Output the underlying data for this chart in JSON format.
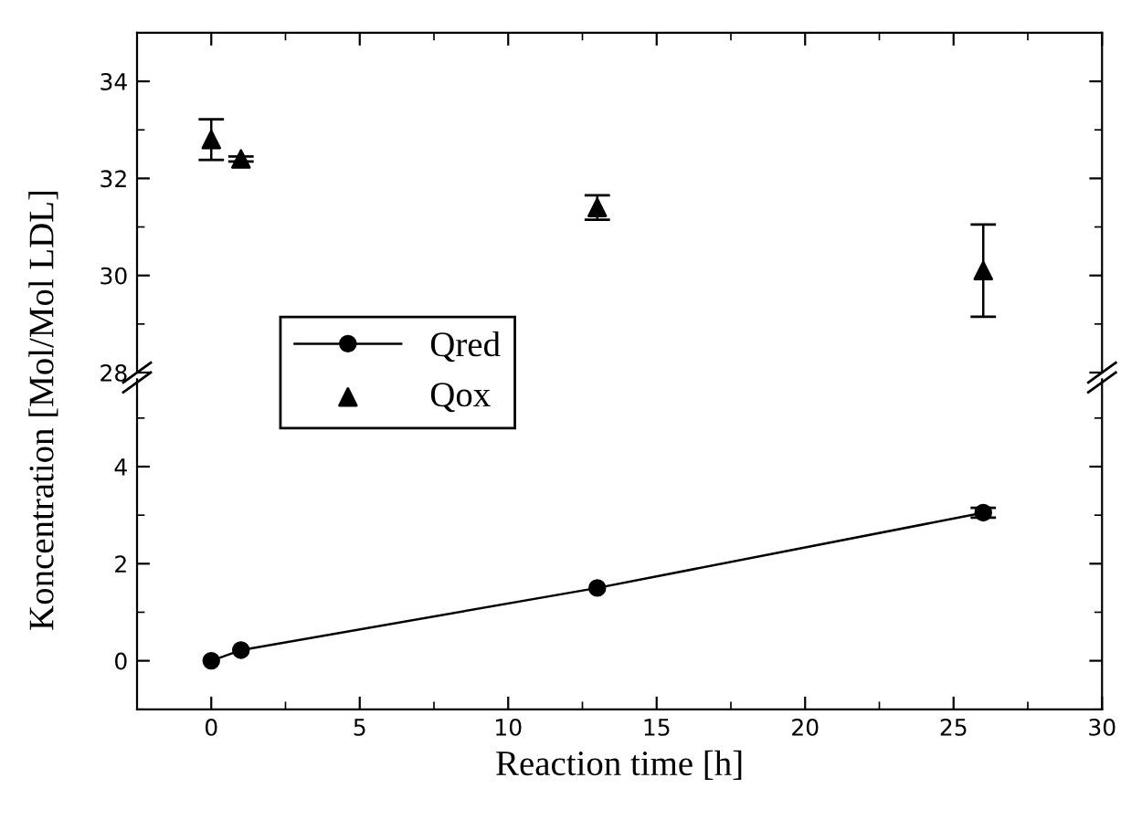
{
  "chart_data": [
    {
      "type": "scatter",
      "xlim": [
        -2.5,
        30
      ],
      "ylim": [
        28,
        35
      ],
      "yticks": [
        28,
        30,
        32,
        34
      ],
      "tick_labels": "y",
      "marker": "triangle",
      "legend": "left",
      "series": [
        {
          "name": "Qox",
          "color": "#000000",
          "x": [
            0,
            1,
            13,
            26
          ],
          "values": [
            32.8,
            32.4,
            31.4,
            30.1
          ],
          "errors": [
            0.42,
            0.05,
            0.25,
            0.95
          ]
        }
      ]
    },
    {
      "type": "line",
      "xlim": [
        -2.5,
        30
      ],
      "ylim": [
        -1,
        5.8
      ],
      "xticks": [
        0,
        5,
        10,
        15,
        20,
        25,
        30
      ],
      "yticks": [
        0,
        2,
        4
      ],
      "marker": "circle",
      "line_style": "solid",
      "legend": "left",
      "xlabel": "Reaction time [h]",
      "ylabel": "Koncentration [Mol/Mol LDL]",
      "series": [
        {
          "name": "Qred",
          "color": "#000000",
          "x": [
            0,
            1,
            13,
            26
          ],
          "values": [
            0,
            0.22,
            1.5,
            3.05
          ],
          "errors": [
            null,
            null,
            null,
            0.1
          ]
        }
      ]
    }
  ]
}
